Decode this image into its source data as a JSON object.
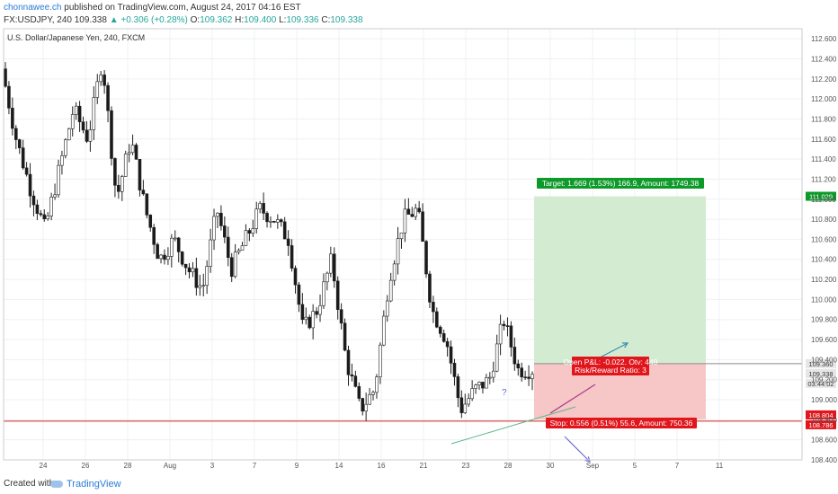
{
  "header": {
    "author": "chonnawee.ch",
    "published_text": "published on TradingView.com, August 24, 2017 04:16 EST",
    "symbol": "FX:USDJPY, 240",
    "last": "109.338",
    "change": "▲ +0.306 (+0.28%)",
    "o_label": "O:",
    "o_value": "109.362",
    "h_label": "H:",
    "h_value": "109.400",
    "l_label": "L:",
    "l_value": "109.336",
    "c_label": "C:",
    "c_value": "109.338"
  },
  "footer": {
    "created_with": "Created with",
    "brand": "TradingView"
  },
  "colors": {
    "up_candle": "#ffffff",
    "down_candle": "#1a1a1a",
    "target_zone": "#d3ecd1",
    "stop_zone": "#f7c6c6",
    "target_label_bg": "#0e9a2a",
    "stop_label_bg": "#e0161c",
    "support_line": "#d42020",
    "trend_line": "#5fb88a",
    "arrow_up": "#3a8fb0",
    "arrow_pink": "#a43c8c",
    "arrow_blue": "#7070d0"
  },
  "chart_data": {
    "type": "candlestick",
    "title": "U.S. Dollar/Japanese Yen, 240, FXCM",
    "ylim": [
      108.4,
      112.7
    ],
    "y_ticks": [
      "112.600",
      "112.400",
      "112.200",
      "112.000",
      "111.800",
      "111.600",
      "111.400",
      "111.200",
      "111.000",
      "110.800",
      "110.600",
      "110.400",
      "110.200",
      "110.000",
      "109.800",
      "109.600",
      "109.400",
      "109.200",
      "109.000",
      "108.800",
      "108.600",
      "108.400"
    ],
    "x_ticks": [
      "24",
      "26",
      "28",
      "Aug",
      "3",
      "7",
      "9",
      "14",
      "16",
      "21",
      "23",
      "28",
      "30",
      "Sep",
      "5",
      "7",
      "11"
    ],
    "grid": true,
    "price_path": [
      112.3,
      111.6,
      111.1,
      110.7,
      111.3,
      111.9,
      111.6,
      112.4,
      111.0,
      111.6,
      110.9,
      110.4,
      110.6,
      110.3,
      110.1,
      110.9,
      110.3,
      110.6,
      110.9,
      110.8,
      110.6,
      109.7,
      109.9,
      110.4,
      109.4,
      108.9,
      109.1,
      110.2,
      110.8,
      110.9,
      109.9,
      109.6,
      108.9,
      109.1,
      109.2,
      109.8,
      109.3,
      109.3
    ],
    "position": {
      "entry": 109.36,
      "target": 111.029,
      "stop": 108.804,
      "target_label": "Target: 1.669 (1.53%) 166.9, Amount: 1749.38",
      "stop_label": "Stop: 0.556 (0.51%) 55.6, Amount: 750.36",
      "open_pl_label": "Open P&L: -0.022, Qty: 449",
      "rr_label": "Risk/Reward Ratio: 3"
    },
    "support_level": 108.786,
    "price_tags": [
      "111.029",
      "109.360",
      "109.338",
      "03:44:02",
      "108.804",
      "108.786"
    ],
    "annotation": "?"
  }
}
